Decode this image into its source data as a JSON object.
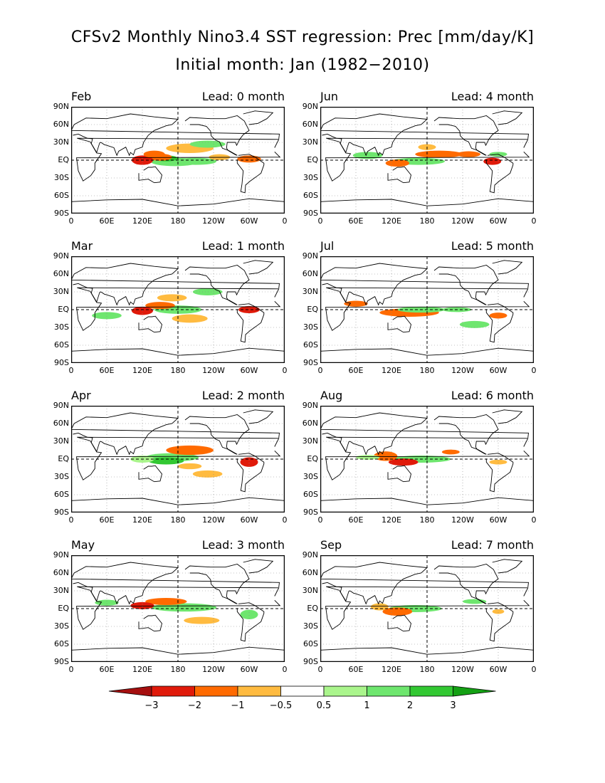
{
  "title": "CFSv2 Monthly Nino3.4 SST regression: Prec [mm/day/K]",
  "subtitle": "Initial month: Jan (1982−2010)",
  "x_ticks": [
    "0",
    "60E",
    "120E",
    "180",
    "120W",
    "60W",
    "0"
  ],
  "y_ticks": [
    "90N",
    "60N",
    "30N",
    "EQ",
    "30S",
    "60S",
    "90S"
  ],
  "panels": [
    {
      "month": "Feb",
      "lead": "Lead: 0 month"
    },
    {
      "month": "Jun",
      "lead": "Lead: 4 month"
    },
    {
      "month": "Mar",
      "lead": "Lead: 1 month"
    },
    {
      "month": "Jul",
      "lead": "Lead: 5 month"
    },
    {
      "month": "Apr",
      "lead": "Lead: 2 month"
    },
    {
      "month": "Aug",
      "lead": "Lead: 6 month"
    },
    {
      "month": "May",
      "lead": "Lead: 3 month"
    },
    {
      "month": "Sep",
      "lead": "Lead: 7 month"
    }
  ],
  "colorbar": {
    "labels": [
      "−3",
      "−2",
      "−1",
      "−0.5",
      "0.5",
      "1",
      "2",
      "3"
    ],
    "colors": [
      "#a50f0f",
      "#e01a0a",
      "#ff6a00",
      "#ffbb40",
      "#ffffff",
      "#aaf58c",
      "#6ee66e",
      "#32c832",
      "#14a014"
    ]
  },
  "colors": {
    "map_line": "#000000",
    "grid": "#888888"
  }
}
